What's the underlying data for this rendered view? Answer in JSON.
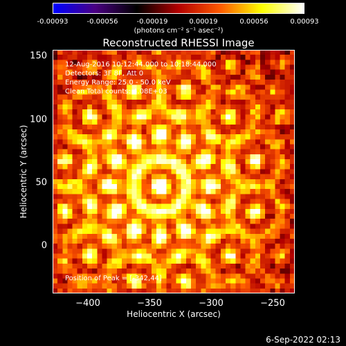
{
  "colorbar": {
    "ticks": [
      "-0.00093",
      "-0.00056",
      "-0.00019",
      "0.00019",
      "0.00056",
      "0.00093"
    ],
    "tick_values": [
      -0.00093,
      -0.00056,
      -0.00019,
      0.00019,
      0.00056,
      0.00093
    ],
    "label": "(photons cm⁻² s⁻¹ asec⁻²)",
    "colors": [
      "#0000ff",
      "#4b0082",
      "#000000",
      "#b30000",
      "#ff5a00",
      "#ffff00",
      "#ffffff"
    ]
  },
  "info": {
    "time_range": "12-Aug-2016 10:12:44.000 to 10:18:44.000",
    "detectors": "Detectors: 3F 8F, Att 0",
    "energy": "Energy Range: 25.0 - 50.0 keV",
    "clean": "Clean    Total counts: 4.08E+03",
    "peak": "Position of Peak = [-342,44]"
  },
  "timestamp": "6-Sep-2022 02:13",
  "chart_data": {
    "type": "heatmap",
    "title": "Reconstructed RHESSI Image",
    "xlabel": "Heliocentric X (arcsec)",
    "ylabel": "Heliocentric Y (arcsec)",
    "xlim": [
      -428,
      -234
    ],
    "ylim": [
      -42,
      153
    ],
    "xticks": [
      -400,
      -350,
      -300,
      -250
    ],
    "yticks": [
      0,
      50,
      100,
      150
    ],
    "xtick_labels": [
      "−400",
      "−350",
      "−300",
      "−250"
    ],
    "ytick_labels": [
      "0",
      "50",
      "100",
      "150"
    ],
    "peak": [
      -342,
      44
    ],
    "value_range": [
      -0.00093,
      0.00093
    ],
    "grid_cells": [
      49,
      49
    ]
  }
}
